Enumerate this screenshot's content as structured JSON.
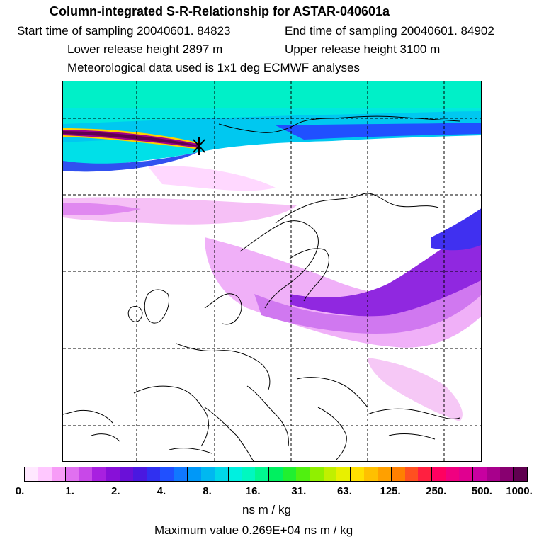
{
  "header": {
    "title": "Column-integrated S-R-Relationship for ASTAR-040601a",
    "start_time": "Start time of sampling 20040601. 84823",
    "end_time": "End time of sampling 20040601. 84902",
    "lower_height": "Lower release height 2897 m",
    "upper_height": "Upper release height 3100 m",
    "met_data": "Meteorological data used is 1x1 deg ECMWF analyses"
  },
  "legend": {
    "ticks": [
      "0.",
      "1.",
      "2.",
      "4.",
      "8.",
      "16.",
      "31.",
      "63.",
      "125.",
      "250.",
      "500.",
      "1000."
    ],
    "colors": [
      "#ffe8ff",
      "#ffc8ff",
      "#f79cf7",
      "#e070f0",
      "#c848e8",
      "#a820e0",
      "#8810d8",
      "#6a10d8",
      "#4a18e0",
      "#3030f0",
      "#2050ff",
      "#1078ff",
      "#0098f8",
      "#00b8f0",
      "#00d8e8",
      "#00f0e0",
      "#00f8c0",
      "#00f890",
      "#00f060",
      "#20f030",
      "#50f010",
      "#90f000",
      "#c0f000",
      "#e8f000",
      "#ffe000",
      "#ffc000",
      "#ffa000",
      "#ff8000",
      "#ff5020",
      "#ff2040",
      "#ff0060",
      "#f00080",
      "#e00090",
      "#c800a0",
      "#a8008c",
      "#880070",
      "#600050"
    ],
    "unit": "ns m / kg",
    "max_value": "Maximum value  0.269E+04 ns m / kg"
  }
}
